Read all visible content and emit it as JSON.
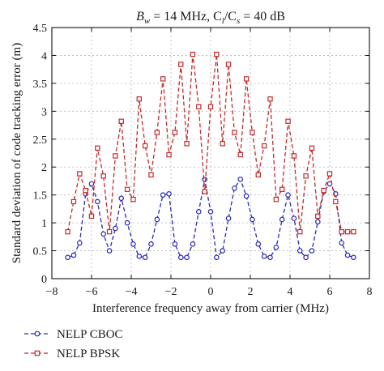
{
  "chart_data": {
    "type": "line",
    "title_parts": [
      "B",
      "w",
      " = 14 MHz, C",
      "l",
      "/C",
      "s",
      " = 40 dB"
    ],
    "xlabel": "Interference frequency away from carrier (MHz)",
    "ylabel": "Standard deviation of code tracking error (m)",
    "xlim": [
      -8,
      8
    ],
    "ylim": [
      0,
      4.5
    ],
    "xticks": [
      -8,
      -6,
      -4,
      -2,
      0,
      2,
      4,
      6,
      8
    ],
    "yticks": [
      0,
      0.5,
      1,
      1.5,
      2,
      2.5,
      3,
      3.5,
      4,
      4.5
    ],
    "xtick_labels": [
      "−8",
      "−6",
      "−4",
      "−2",
      "0",
      "2",
      "4",
      "6",
      "8"
    ],
    "ytick_labels": [
      "0",
      "0.5",
      "1",
      "1.5",
      "2",
      "2.5",
      "3",
      "3.5",
      "4",
      "4.5"
    ],
    "grid": true,
    "legend_position": "bottom-left, below plot",
    "x": [
      -7.2,
      -6.9,
      -6.6,
      -6.3,
      -6.0,
      -5.7,
      -5.4,
      -5.1,
      -4.8,
      -4.5,
      -4.2,
      -3.9,
      -3.6,
      -3.3,
      -3.0,
      -2.7,
      -2.4,
      -2.1,
      -1.8,
      -1.5,
      -1.2,
      -0.9,
      -0.6,
      -0.3,
      0.0,
      0.3,
      0.6,
      0.9,
      1.2,
      1.5,
      1.8,
      2.1,
      2.4,
      2.7,
      3.0,
      3.3,
      3.6,
      3.9,
      4.2,
      4.5,
      4.8,
      5.1,
      5.4,
      5.7,
      6.0,
      6.3,
      6.6,
      6.9,
      7.2
    ],
    "series": [
      {
        "name": "NELP CBOC",
        "color": "#2a2ab4",
        "marker": "circle",
        "line_style": "dashed",
        "values": [
          0.38,
          0.42,
          0.64,
          1.52,
          1.7,
          1.38,
          0.8,
          0.5,
          0.9,
          1.44,
          1.0,
          0.62,
          0.4,
          0.38,
          0.62,
          1.06,
          1.5,
          1.52,
          0.62,
          0.38,
          0.38,
          0.62,
          1.2,
          1.78,
          1.2,
          0.38,
          0.5,
          1.08,
          1.62,
          1.78,
          1.48,
          1.06,
          0.62,
          0.4,
          0.38,
          0.56,
          1.06,
          1.5,
          1.08,
          0.5,
          0.38,
          0.5,
          1.02,
          1.56,
          1.7,
          1.52,
          0.64,
          0.42,
          0.38
        ]
      },
      {
        "name": "NELP BPSK",
        "color": "#c42a2a",
        "marker": "square",
        "line_style": "dashed",
        "values": [
          0.84,
          1.38,
          1.88,
          1.58,
          1.12,
          2.34,
          1.84,
          0.84,
          2.2,
          2.82,
          1.6,
          1.42,
          3.22,
          2.38,
          1.86,
          2.62,
          3.58,
          2.22,
          2.62,
          3.84,
          2.42,
          4.02,
          3.08,
          1.56,
          3.08,
          4.02,
          2.42,
          3.84,
          2.62,
          2.22,
          3.58,
          2.62,
          1.86,
          2.38,
          3.22,
          1.42,
          1.6,
          2.82,
          2.2,
          0.84,
          1.84,
          2.34,
          1.12,
          1.58,
          1.88,
          1.38,
          0.84,
          0.84,
          0.84
        ]
      }
    ]
  }
}
